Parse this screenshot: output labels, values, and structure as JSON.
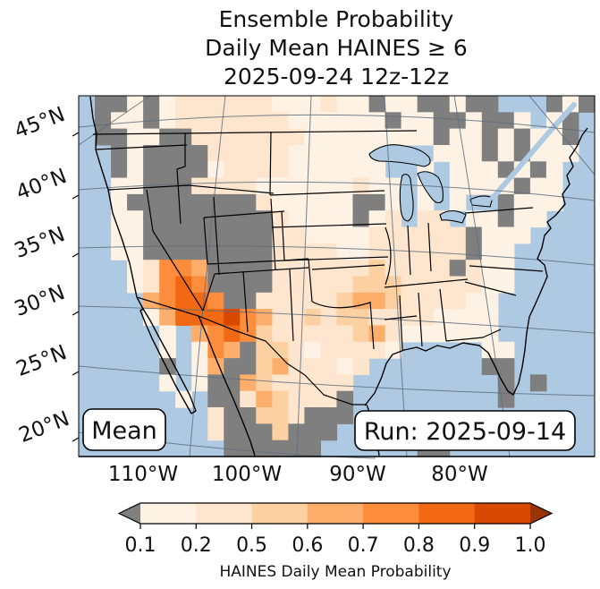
{
  "title": {
    "line1": "Ensemble Probability",
    "line2": "Daily Mean HAINES ≥ 6",
    "line3": "2025-09-24 12z-12z"
  },
  "map": {
    "mean_box_label": "Mean",
    "run_box_label": "Run: 2025-09-14",
    "lat_tick_labels": [
      "45°N",
      "40°N",
      "35°N",
      "30°N",
      "25°N",
      "20°N"
    ],
    "lon_tick_labels": [
      "110°W",
      "100°W",
      "90°W",
      "80°W"
    ],
    "ocean_color": "#aecae3",
    "no_data_color": "#7f7f7f"
  },
  "colorbar": {
    "caption": "HAINES Daily Mean Probability",
    "tick_labels": [
      "0.1",
      "0.2",
      "0.5",
      "0.6",
      "0.7",
      "0.8",
      "0.9",
      "1.0"
    ],
    "segment_colors": [
      "#fdf2e4",
      "#fee6ce",
      "#fdd0a2",
      "#fdae6b",
      "#fd8d3c",
      "#f16913",
      "#d94801"
    ],
    "under_arrow_color": "#808080",
    "over_arrow_color": "#993404"
  },
  "chart_data": {
    "type": "heatmap",
    "title": "Ensemble Probability Daily Mean HAINES ≥ 6, 2025-09-24 12z-12z",
    "value_label": "HAINES Daily Mean Probability",
    "bins": [
      0.1,
      0.2,
      0.5,
      0.6,
      0.7,
      0.8,
      0.9,
      1.0
    ],
    "legend": {
      ".": "ocean / no field",
      "g": "below 0.1 (gray under-range)",
      "a": "0.1-0.2",
      "b": "0.2-0.5",
      "c": "0.5-0.6",
      "d": "0.6-0.7",
      "e": "0.7-0.8",
      "f": "0.8-0.9",
      "h": "0.9-1.0"
    },
    "palette": {
      "g": "#7f7f7f",
      "a": "#fdf2e4",
      "b": "#fee6ce",
      "c": "#fdd0a2",
      "d": "#fdae6b",
      "e": "#fd8d3c",
      "f": "#f16913",
      "h": "#d94801"
    },
    "grid_rows": [
      ".ggagabbbbbbaaabaagaaggagg...gag",
      ".gaagabbbbbbbaaaaaagaaggagga.ag.",
      ".ggaaggbbbbbbbaaaaaaaagaagagaag.",
      "..gaggggbbbbbaaaaaa...aaagagaaa.",
      "..gaggggabbbbaaaaaa..a.aaagaga..",
      "..aagggbbbbaaaaaabaa.a.aaaagaa..",
      "..aggggggggbaaaaagga.a.a..gaaa..",
      "..aaggggggggbaaaagab.bb.aagaa...",
      "..aaggggggggbbaaaabbbbbbgaaa....",
      "..aaggggggggbbbbaabbbbbbgaa.....",
      "...abeedggggbbbbbbcbbbbgbaa.....",
      "...abefeggggbbbbbcccbbbbbaa.....",
      "....deffeggbbbbbcddcbbbbaa......",
      "....adfffhedbbcbccbbbbaaaa......",
      ".....a.defecbbbbbcdbaaaaaa......",
      ".....a.aedgccbabbbba.....aa.....",
      ".....g.adggcdbbbab.......gg.....",
      ".....a.aggdcbbbbb.........g.g...",
      "......a.ggbdcbbbg.........g.....",
      "........bggccbggg...............",
      "........bgggcggg................",
      ".........gggggg......gg........."
    ]
  }
}
